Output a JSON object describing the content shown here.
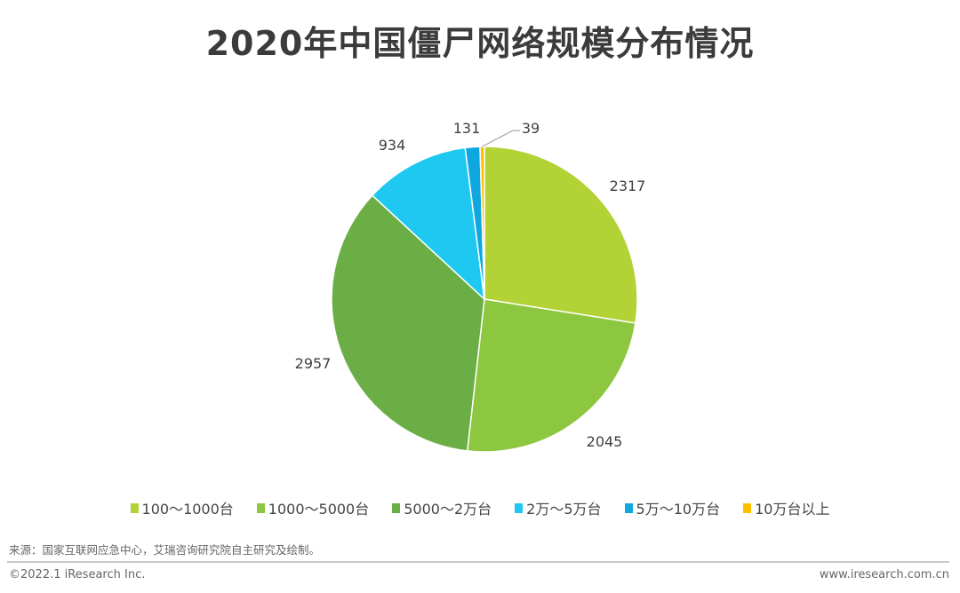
{
  "chart_data": {
    "type": "pie",
    "title": "2020年中国僵尸网络规模分布情况",
    "categories": [
      "100～1000台",
      "1000～5000台",
      "5000～2万台",
      "2万～5万台",
      "5万～10万台",
      "10万台以上"
    ],
    "values": [
      2317,
      2045,
      2957,
      934,
      131,
      39
    ],
    "colors": [
      "#B2D235",
      "#8DC63F",
      "#6AAE45",
      "#1FC8F0",
      "#0FA7E0",
      "#FFC000"
    ],
    "start": "top",
    "direction": "clockwise",
    "legend_position": "bottom"
  },
  "footer": {
    "source": "来源：国家互联网应急中心，艾瑞咨询研究院自主研究及绘制。",
    "copyright": "©2022.1 iResearch Inc.",
    "website": "www.iresearch.com.cn"
  }
}
